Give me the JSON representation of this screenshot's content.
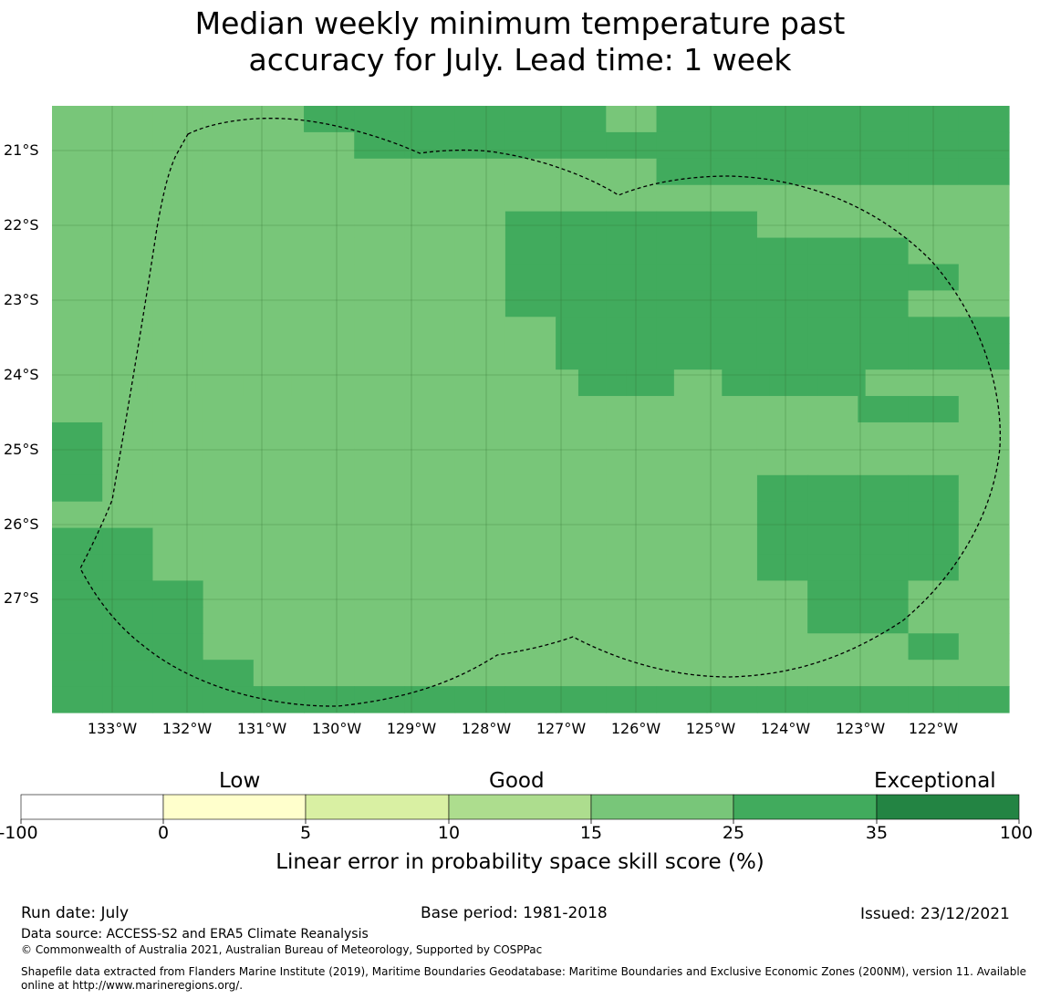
{
  "title_line1": "Median weekly minimum temperature past",
  "title_line2": "accuracy for July. Lead time: 1 week",
  "lat_labels": [
    "21°S",
    "22°S",
    "23°S",
    "24°S",
    "25°S",
    "26°S",
    "27°S"
  ],
  "lon_labels": [
    "133°W",
    "132°W",
    "131°W",
    "130°W",
    "129°W",
    "128°W",
    "127°W",
    "126°W",
    "125°W",
    "124°W",
    "123°W",
    "122°W"
  ],
  "colorbar": {
    "categories": [
      "Low",
      "Good",
      "Exceptional"
    ],
    "ticks": [
      "-100",
      "0",
      "5",
      "10",
      "15",
      "25",
      "35",
      "100"
    ],
    "colors": [
      "#ffffff",
      "#ffffcc",
      "#d9f0a3",
      "#addd8e",
      "#78c679",
      "#41ab5d",
      "#238443"
    ],
    "title": "Linear error in probability space skill score (%)"
  },
  "footer": {
    "run_date": "Run date: July",
    "base_period": "Base period: 1981-2018",
    "issued": "Issued: 23/12/2021",
    "data_source": "Data source: ACCESS-S2 and ERA5 Climate Reanalysis",
    "copyright": "© Commonwealth of Australia 2021, Australian Bureau of Meteorology, Supported by COSPPac",
    "shapefile_line1": "Shapefile data extracted from Flanders Marine Institute (2019), Maritime Boundaries Geodatabase: Maritime Boundaries and Exclusive Economic Zones (200NM), version 11. Available",
    "shapefile_line2": "online at http://www.marineregions.org/."
  },
  "map_grid": {
    "note_colors": {
      "l": "#78c679",
      "d": "#41ab5d"
    },
    "rows": [
      "lllllddddddlddddddd",
      "llllllddddddddddddd",
      "llllllllllllddddddd",
      "lllllllllllllllllll",
      "llllllllldddddlllll",
      "lllllllllddddddddll",
      "llllllllldddddddddl",
      "lllllllllddddddddll",
      "llllllllllddddddddd",
      "llllllllllddddddddd",
      "lllllllllllddldddlll",
      "llllllllllllllllddl",
      "dllllllllllllllllll",
      "dllllllllllllllllll",
      "dlllllllllllllddddl",
      "llllllllllllllddddl",
      "ddllllllllllllddddl",
      "ddllllllllllllddddl",
      "dddllllllllllllddll",
      "dddllllllllllllddll",
      "dddlllllllllllllldl",
      "ddddlllllllllllllll",
      "ddddddddddddddddddd"
    ]
  }
}
